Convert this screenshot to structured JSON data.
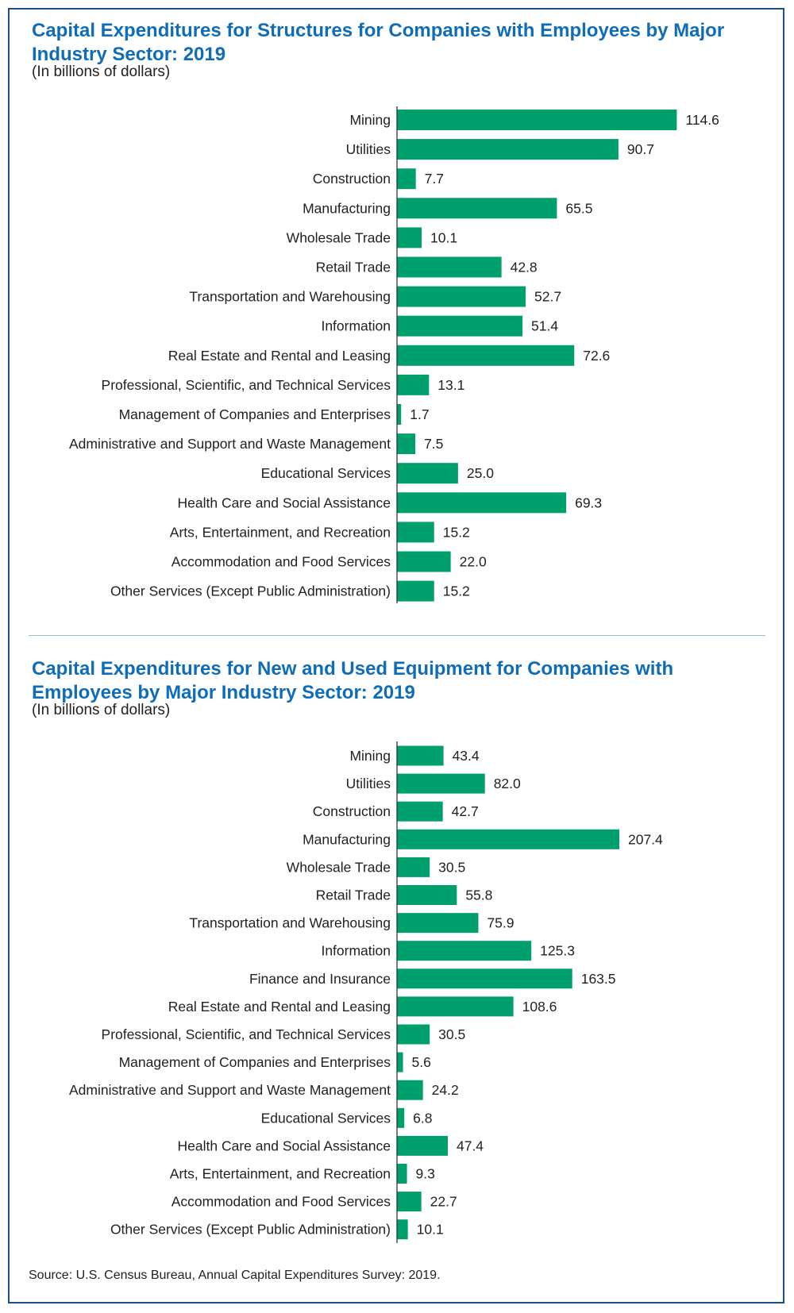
{
  "chart_data": [
    {
      "type": "bar",
      "orientation": "horizontal",
      "title": "Capital Expenditures for Structures for Companies with Employees by Major Industry Sector: 2019",
      "subtitle": "(In billions of dollars)",
      "color": "#00a06e",
      "categories": [
        "Mining",
        "Utilities",
        "Construction",
        "Manufacturing",
        "Wholesale Trade",
        "Retail Trade",
        "Transportation and Warehousing",
        "Information",
        "Real Estate and Rental and Leasing",
        "Professional, Scientific, and Technical Services",
        "Management of Companies and Enterprises",
        "Administrative and Support and Waste Management",
        "Educational Services",
        "Health Care and Social Assistance",
        "Arts, Entertainment, and Recreation",
        "Accommodation and Food Services",
        "Other Services (Except Public Administration)"
      ],
      "values": [
        114.6,
        90.7,
        7.7,
        65.5,
        10.1,
        42.8,
        52.7,
        51.4,
        72.6,
        13.1,
        1.7,
        7.5,
        25.0,
        69.3,
        15.2,
        22.0,
        15.2
      ],
      "value_labels": [
        "114.6",
        "90.7",
        "7.7",
        "65.5",
        "10.1",
        "42.8",
        "52.7",
        "51.4",
        "72.6",
        "13.1",
        "1.7",
        "7.5",
        "25.0",
        "69.3",
        "15.2",
        "22.0",
        "15.2"
      ],
      "xlim": [
        0,
        220
      ]
    },
    {
      "type": "bar",
      "orientation": "horizontal",
      "title": "Capital Expenditures for New and Used Equipment for Companies with Employees by Major Industry Sector: 2019",
      "subtitle": "(In billions of dollars)",
      "color": "#00a06e",
      "categories": [
        "Mining",
        "Utilities",
        "Construction",
        "Manufacturing",
        "Wholesale Trade",
        "Retail Trade",
        "Transportation and Warehousing",
        "Information",
        "Finance and Insurance",
        "Real Estate and Rental and Leasing",
        "Professional, Scientific, and Technical Services",
        "Management of Companies and Enterprises",
        "Administrative and Support and Waste Management",
        "Educational Services",
        "Health Care and Social Assistance",
        "Arts, Entertainment, and Recreation",
        "Accommodation and Food Services",
        "Other Services (Except Public Administration)"
      ],
      "values": [
        43.4,
        82.0,
        42.7,
        207.4,
        30.5,
        55.8,
        75.9,
        125.3,
        163.5,
        108.6,
        30.5,
        5.6,
        24.2,
        6.8,
        47.4,
        9.3,
        22.7,
        10.1
      ],
      "value_labels": [
        "43.4",
        "82.0",
        "42.7",
        "207.4",
        "30.5",
        "55.8",
        "75.9",
        "125.3",
        "163.5",
        "108.6",
        "30.5",
        "5.6",
        "24.2",
        "6.8",
        "47.4",
        "9.3",
        "22.7",
        "10.1"
      ],
      "xlim": [
        0,
        220
      ]
    }
  ],
  "source": "Source: U.S. Census Bureau, Annual Capital Expenditures Survey: 2019."
}
